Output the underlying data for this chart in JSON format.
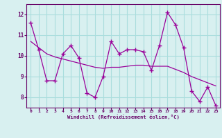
{
  "title": "",
  "xlabel": "Windchill (Refroidissement éolien,°C)",
  "ylabel": "",
  "x": [
    0,
    1,
    2,
    3,
    4,
    5,
    6,
    7,
    8,
    9,
    10,
    11,
    12,
    13,
    14,
    15,
    16,
    17,
    18,
    19,
    20,
    21,
    22,
    23
  ],
  "y_main": [
    11.6,
    10.3,
    8.8,
    8.8,
    10.1,
    10.5,
    9.9,
    8.2,
    8.0,
    9.0,
    10.7,
    10.1,
    10.3,
    10.3,
    10.2,
    9.3,
    10.5,
    12.1,
    11.5,
    10.4,
    8.3,
    7.8,
    8.5,
    7.6
  ],
  "y_trend": [
    10.7,
    10.4,
    10.1,
    9.95,
    9.85,
    9.75,
    9.65,
    9.55,
    9.45,
    9.4,
    9.45,
    9.45,
    9.5,
    9.55,
    9.55,
    9.5,
    9.5,
    9.5,
    9.35,
    9.2,
    9.0,
    8.85,
    8.7,
    8.55
  ],
  "line_color": "#990099",
  "bg_color": "#d8f0f0",
  "grid_color": "#aadddd",
  "text_color": "#660066",
  "ylim": [
    7.5,
    12.5
  ],
  "xlim": [
    -0.5,
    23.5
  ],
  "yticks": [
    8,
    9,
    10,
    11,
    12
  ],
  "xticks": [
    0,
    1,
    2,
    3,
    4,
    5,
    6,
    7,
    8,
    9,
    10,
    11,
    12,
    13,
    14,
    15,
    16,
    17,
    18,
    19,
    20,
    21,
    22,
    23
  ]
}
